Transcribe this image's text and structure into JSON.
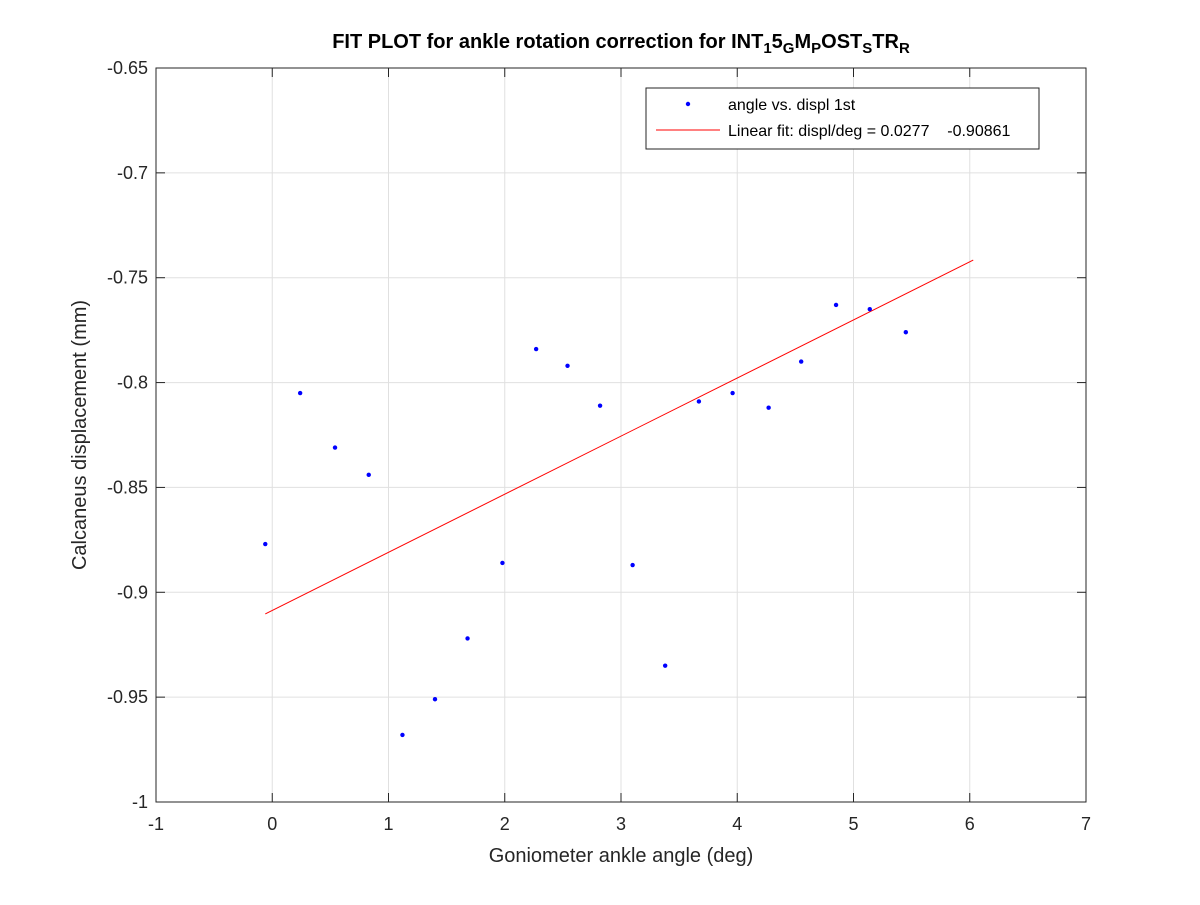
{
  "chart_data": {
    "type": "scatter",
    "title_parts": [
      {
        "text": "FIT PLOT for ankle rotation correction for INT",
        "sub": false
      },
      {
        "text": "1",
        "sub": true
      },
      {
        "text": "5",
        "sub": false
      },
      {
        "text": "G",
        "sub": true
      },
      {
        "text": "M",
        "sub": false
      },
      {
        "text": "P",
        "sub": true
      },
      {
        "text": "OST",
        "sub": false
      },
      {
        "text": "S",
        "sub": true
      },
      {
        "text": "TR",
        "sub": false
      },
      {
        "text": "R",
        "sub": true
      }
    ],
    "xlabel": "Goniometer ankle angle (deg)",
    "ylabel": "Calcaneus displacement (mm)",
    "xlim": [
      -1,
      7
    ],
    "ylim": [
      -1,
      -0.65
    ],
    "xticks": [
      -1,
      0,
      1,
      2,
      3,
      4,
      5,
      6,
      7
    ],
    "xtick_labels": [
      "-1",
      "0",
      "1",
      "2",
      "3",
      "4",
      "5",
      "6",
      "7"
    ],
    "yticks": [
      -0.65,
      -0.7,
      -0.75,
      -0.8,
      -0.85,
      -0.9,
      -0.95,
      -1
    ],
    "ytick_labels": [
      "-0.65",
      "-0.7",
      "-0.75",
      "-0.8",
      "-0.85",
      "-0.9",
      "-0.95",
      "-1"
    ],
    "grid": true,
    "legend_position": "top-right",
    "series": [
      {
        "name": "angle vs. displ 1st",
        "kind": "points",
        "color": "#0000ff",
        "x": [
          -0.06,
          0.24,
          0.54,
          0.83,
          1.12,
          1.4,
          1.68,
          1.98,
          2.27,
          2.54,
          2.82,
          3.1,
          3.38,
          3.67,
          3.96,
          4.27,
          4.55,
          4.85,
          5.14,
          5.45
        ],
        "y": [
          -0.877,
          -0.805,
          -0.831,
          -0.844,
          -0.968,
          -0.951,
          -0.922,
          -0.886,
          -0.784,
          -0.792,
          -0.811,
          -0.887,
          -0.935,
          -0.809,
          -0.805,
          -0.812,
          -0.79,
          -0.763,
          -0.765,
          -0.776
        ]
      },
      {
        "name": "Linear fit: displ/deg = 0.0277    -0.90861",
        "kind": "line",
        "color": "#ff0000",
        "x": [
          -0.06,
          6.03
        ],
        "y": [
          -0.9103,
          -0.7416
        ]
      }
    ]
  }
}
